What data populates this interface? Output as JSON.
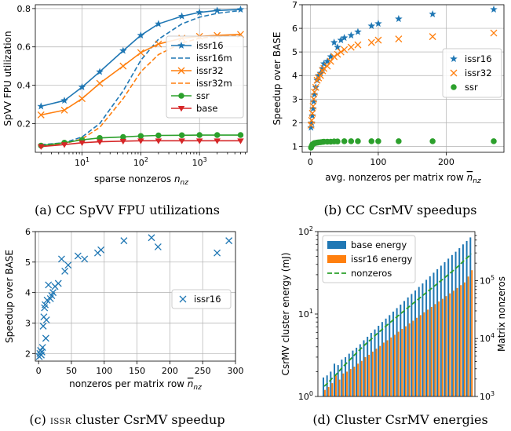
{
  "colors": {
    "issr16": "#1f77b4",
    "issr32": "#ff7f0e",
    "ssr": "#2ca02c",
    "base": "#d62728",
    "nonzeros": "#2ca02c"
  },
  "chart_data": [
    {
      "id": "a",
      "type": "line",
      "caption": "(a) CC SpVV FPU utilizations",
      "xlabel": "sparse nonzeros",
      "xlabel_sub": "nz",
      "ylabel": "SpVV FPU utilization",
      "xscale": "log",
      "xlim": [
        1.6,
        6500
      ],
      "ylim": [
        0.05,
        0.82
      ],
      "xticks": [
        {
          "value": 10,
          "label": "10",
          "exp": "1"
        },
        {
          "value": 100,
          "label": "10",
          "exp": "2"
        },
        {
          "value": 1000,
          "label": "10",
          "exp": "3"
        }
      ],
      "yticks": [
        0.2,
        0.4,
        0.6,
        0.8
      ],
      "ytick_labels": [
        "0.2",
        "0.4",
        "0.6",
        "0.8"
      ],
      "grid": true,
      "legend_position": "center-right",
      "x": [
        2,
        5,
        10,
        20,
        50,
        100,
        200,
        500,
        1000,
        2000,
        5000
      ],
      "series": [
        {
          "name": "issr16",
          "key": "issr16",
          "dash": false,
          "marker": "star",
          "values": [
            0.29,
            0.32,
            0.39,
            0.47,
            0.58,
            0.66,
            0.72,
            0.76,
            0.78,
            0.79,
            0.795
          ]
        },
        {
          "name": "issr16m",
          "key": "issr16",
          "dash": true,
          "marker": "none",
          "values": [
            0.09,
            0.1,
            0.13,
            0.2,
            0.37,
            0.53,
            0.64,
            0.72,
            0.755,
            0.775,
            0.79
          ]
        },
        {
          "name": "issr32",
          "key": "issr32",
          "dash": false,
          "marker": "x",
          "values": [
            0.245,
            0.27,
            0.33,
            0.41,
            0.5,
            0.57,
            0.615,
            0.645,
            0.655,
            0.66,
            0.665
          ]
        },
        {
          "name": "issr32m",
          "key": "issr32",
          "dash": true,
          "marker": "none",
          "values": [
            0.08,
            0.095,
            0.12,
            0.18,
            0.33,
            0.47,
            0.56,
            0.62,
            0.645,
            0.655,
            0.66
          ]
        },
        {
          "name": "ssr",
          "key": "ssr",
          "dash": false,
          "marker": "circle",
          "values": [
            0.085,
            0.1,
            0.115,
            0.125,
            0.13,
            0.135,
            0.138,
            0.139,
            0.14,
            0.14,
            0.14
          ]
        },
        {
          "name": "base",
          "key": "base",
          "dash": false,
          "marker": "triangle-down",
          "values": [
            0.08,
            0.09,
            0.1,
            0.105,
            0.108,
            0.11,
            0.11,
            0.11,
            0.11,
            0.11,
            0.11
          ]
        }
      ]
    },
    {
      "id": "b",
      "type": "scatter",
      "caption": "(b) CC CsrMV speedups",
      "xlabel": "avg. nonzeros per matrix row",
      "xlabel_sub": "nz",
      "ylabel": "Speedup over BASE",
      "xlim": [
        -12,
        285
      ],
      "ylim": [
        0.75,
        7.0
      ],
      "xticks": [
        {
          "value": 0,
          "label": "0"
        },
        {
          "value": 100,
          "label": "100"
        },
        {
          "value": 200,
          "label": "200"
        }
      ],
      "yticks": [
        1,
        2,
        3,
        4,
        5,
        6,
        7
      ],
      "ytick_labels": [
        "1",
        "2",
        "3",
        "4",
        "5",
        "6",
        "7"
      ],
      "grid": true,
      "legend_position": "center-right",
      "series": [
        {
          "name": "issr16",
          "key": "issr16",
          "marker": "star",
          "x": [
            1,
            2,
            3,
            4,
            5,
            6,
            8,
            10,
            12,
            15,
            18,
            20,
            25,
            30,
            35,
            40,
            45,
            50,
            60,
            70,
            90,
            100,
            130,
            180,
            270
          ],
          "y": [
            1.8,
            2.0,
            2.3,
            2.6,
            2.9,
            3.2,
            3.5,
            3.8,
            4.0,
            4.1,
            4.3,
            4.5,
            4.6,
            4.8,
            5.4,
            5.2,
            5.5,
            5.6,
            5.7,
            5.85,
            6.1,
            6.2,
            6.4,
            6.6,
            6.8
          ]
        },
        {
          "name": "issr32",
          "key": "issr32",
          "marker": "x",
          "x": [
            1,
            2,
            3,
            4,
            5,
            6,
            8,
            10,
            12,
            15,
            18,
            20,
            25,
            30,
            35,
            40,
            45,
            50,
            60,
            70,
            90,
            100,
            130,
            180,
            270
          ],
          "y": [
            1.9,
            2.1,
            2.4,
            2.7,
            3.0,
            3.3,
            3.5,
            3.8,
            3.9,
            4.0,
            4.2,
            4.3,
            4.4,
            4.6,
            4.8,
            4.9,
            5.0,
            5.1,
            5.2,
            5.3,
            5.4,
            5.5,
            5.55,
            5.65,
            5.8
          ]
        },
        {
          "name": "ssr",
          "key": "ssr",
          "marker": "circle",
          "x": [
            1,
            2,
            3,
            4,
            5,
            6,
            8,
            10,
            12,
            15,
            18,
            20,
            25,
            30,
            35,
            40,
            50,
            60,
            70,
            90,
            100,
            130,
            180,
            270
          ],
          "y": [
            0.95,
            1.02,
            1.08,
            1.1,
            1.12,
            1.14,
            1.15,
            1.16,
            1.17,
            1.18,
            1.19,
            1.2,
            1.2,
            1.2,
            1.21,
            1.21,
            1.22,
            1.22,
            1.22,
            1.22,
            1.22,
            1.22,
            1.22,
            1.22
          ]
        }
      ]
    },
    {
      "id": "c",
      "type": "scatter",
      "caption_prefix": "(c) ",
      "caption_small": "issr",
      "caption_rest": " cluster CsrMV speedup",
      "xlabel": "nonzeros per matrix row",
      "xlabel_sub": "nz",
      "ylabel": "Speedup over BASE",
      "xlim": [
        -5,
        300
      ],
      "ylim": [
        1.75,
        6.0
      ],
      "xticks": [
        0,
        50,
        100,
        150,
        200,
        250,
        300
      ],
      "xtick_labels": [
        "0",
        "50",
        "100",
        "150",
        "200",
        "250",
        "300"
      ],
      "yticks": [
        2,
        3,
        4,
        5,
        6
      ],
      "ytick_labels": [
        "2",
        "3",
        "4",
        "5",
        "6"
      ],
      "grid": true,
      "legend_position": "center-right",
      "series": [
        {
          "name": "issr16",
          "key": "issr16",
          "marker": "x",
          "x": [
            1,
            2,
            3,
            4,
            5,
            6,
            7,
            8,
            9,
            10,
            11,
            12,
            13,
            15,
            18,
            20,
            22,
            25,
            30,
            35,
            40,
            45,
            60,
            70,
            90,
            95,
            130,
            172,
            182,
            272,
            290
          ],
          "y": [
            1.9,
            2.0,
            2.1,
            1.95,
            2.05,
            2.2,
            2.9,
            3.2,
            3.5,
            3.6,
            2.5,
            3.1,
            3.75,
            4.25,
            3.8,
            3.9,
            4.0,
            4.2,
            4.3,
            5.1,
            4.7,
            4.9,
            5.2,
            5.1,
            5.3,
            5.4,
            5.7,
            5.8,
            5.5,
            5.3,
            5.7
          ]
        }
      ]
    },
    {
      "id": "d",
      "type": "bar",
      "caption": "(d) Cluster CsrMV energies",
      "ylabel": "CsrMV cluster energy (mJ)",
      "ylabel_right": "Matrix nonzeros",
      "yscale": "log",
      "ylim": [
        1,
        100
      ],
      "y2scale": "log",
      "y2lim": [
        1000,
        700000
      ],
      "yticks": [
        {
          "value": 1,
          "label": "10",
          "exp": "0"
        },
        {
          "value": 10,
          "label": "10",
          "exp": "1"
        },
        {
          "value": 100,
          "label": "10",
          "exp": "2"
        }
      ],
      "y2ticks": [
        {
          "value": 1000,
          "label": "10",
          "exp": "3"
        },
        {
          "value": 10000,
          "label": "10",
          "exp": "4"
        },
        {
          "value": 100000,
          "label": "10",
          "exp": "5"
        }
      ],
      "legend_position": "top-left",
      "series": [
        {
          "name": "base energy",
          "key": "issr16",
          "values": [
            1.7,
            1.8,
            2.0,
            2.5,
            2.4,
            2.8,
            3.0,
            3.3,
            3.6,
            3.9,
            4.3,
            4.8,
            5.3,
            5.9,
            6.5,
            7.2,
            8.0,
            8.8,
            9.7,
            10.7,
            11.8,
            13,
            14.4,
            15.9,
            17.5,
            19.3,
            21.3,
            23.5,
            26,
            28.7,
            31.7,
            35,
            38.6,
            42.6,
            47,
            52,
            57,
            63,
            70,
            77,
            85
          ]
        },
        {
          "name": "issr16 energy",
          "key": "issr32",
          "values": [
            1.2,
            1.3,
            1.45,
            1.8,
            1.6,
            1.9,
            2.0,
            2.15,
            2.3,
            2.5,
            2.7,
            3.0,
            3.2,
            3.5,
            3.8,
            4.1,
            4.5,
            4.8,
            5.2,
            5.6,
            6.1,
            6.6,
            7.1,
            7.7,
            8.3,
            9.0,
            9.7,
            10.5,
            11.3,
            12.2,
            13.2,
            14.2,
            15.3,
            16.5,
            17.8,
            19.2,
            20.7,
            22.4,
            24.2,
            28.5,
            34
          ]
        },
        {
          "name": "nonzeros",
          "key": "nonzeros",
          "dash": true,
          "axis": "right",
          "values": [
            1500,
            1700,
            2000,
            2300,
            2700,
            3200,
            3700,
            4300,
            5000,
            5800,
            6700,
            7700,
            8800,
            10000,
            11500,
            13000,
            14800,
            16800,
            19000,
            21500,
            24300,
            27500,
            31000,
            35000,
            39500,
            44500,
            50000,
            56500,
            63500,
            71500,
            80500,
            90500,
            102000,
            115000,
            130000,
            147000,
            166000,
            190000,
            220000,
            250000,
            290000
          ]
        }
      ]
    }
  ]
}
